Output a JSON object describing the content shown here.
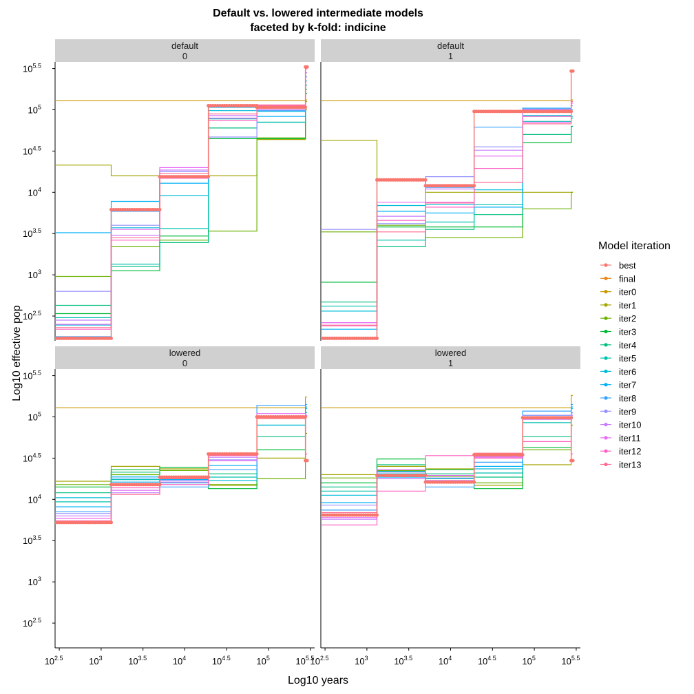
{
  "chart_data": {
    "type": "line",
    "title_line1": "Default vs. lowered intermediate models",
    "title_line2": "faceted by k-fold: indicine",
    "xlabel": "Log10 years",
    "ylabel": "Log10 effective pop",
    "x_scale": "log10",
    "y_scale": "log10",
    "xlim_log10": [
      2.45,
      5.55
    ],
    "ylim_log10": [
      2.2,
      5.58
    ],
    "x_ticks_log10": [
      2.5,
      3,
      3.5,
      4,
      4.5,
      5,
      5.5
    ],
    "y_ticks_log10": [
      2.5,
      3,
      3.5,
      4,
      4.5,
      5,
      5.5
    ],
    "tick_labels": {
      "2.5": "2.5",
      "3": "3",
      "3.5": "3.5",
      "4": "4",
      "4.5": "4.5",
      "5": "5",
      "5.5": "5.5"
    },
    "tick_base": "10",
    "legend_title": "Model iteration",
    "legend_position": "right",
    "grid": false,
    "series_colors": {
      "best": "#F8766D",
      "final": "#E7861B",
      "iter0": "#C99800",
      "iter1": "#A3A500",
      "iter2": "#6BB100",
      "iter3": "#00BA38",
      "iter4": "#00BF7D",
      "iter5": "#00C0AF",
      "iter6": "#00BCD8",
      "iter7": "#00B0F6",
      "iter8": "#35A2FF",
      "iter9": "#9590FF",
      "iter10": "#C77CFF",
      "iter11": "#E76BF3",
      "iter12": "#FF61C3",
      "iter13": "#FF6C91"
    },
    "series_names": [
      "best",
      "final",
      "iter0",
      "iter1",
      "iter2",
      "iter3",
      "iter4",
      "iter5",
      "iter6",
      "iter7",
      "iter8",
      "iter9",
      "iter10",
      "iter11",
      "iter12",
      "iter13"
    ],
    "facets": [
      {
        "strip": [
          "default",
          "0"
        ],
        "breaks_log10": [
          2.45,
          3.12,
          3.7,
          4.28,
          4.86,
          5.44,
          5.46
        ],
        "series": [
          {
            "name": "iter0",
            "values": [
              5.11,
              5.11,
              5.11,
              5.11,
              5.11,
              5.12
            ]
          },
          {
            "name": "iter1",
            "values": [
              4.33,
              4.2,
              4.2,
              4.2,
              4.64,
              5.0
            ]
          },
          {
            "name": "iter2",
            "values": [
              2.98,
              3.34,
              3.42,
              3.53,
              4.66,
              5.1
            ]
          },
          {
            "name": "iter3",
            "values": [
              2.53,
              3.05,
              3.47,
              4.65,
              4.65,
              5.2
            ]
          },
          {
            "name": "iter4",
            "values": [
              2.63,
              3.1,
              3.39,
              4.78,
              4.85,
              5.25
            ]
          },
          {
            "name": "iter5",
            "values": [
              2.48,
              3.13,
              3.56,
              4.89,
              4.85,
              5.3
            ]
          },
          {
            "name": "iter6",
            "values": [
              2.39,
              3.57,
              3.96,
              4.99,
              4.98,
              5.3
            ]
          },
          {
            "name": "iter7",
            "values": [
              3.51,
              3.89,
              4.11,
              5.03,
              4.92,
              5.35
            ]
          },
          {
            "name": "iter8",
            "values": [
              2.25,
              3.77,
              4.2,
              5.05,
              4.99,
              5.4
            ]
          },
          {
            "name": "iter9",
            "values": [
              2.8,
              3.6,
              4.25,
              4.67,
              5.05,
              5.45
            ]
          },
          {
            "name": "iter10",
            "values": [
              2.45,
              3.48,
              4.27,
              4.93,
              5.0,
              5.45
            ]
          },
          {
            "name": "iter11",
            "values": [
              2.4,
              3.55,
              4.3,
              4.9,
              5.02,
              5.5
            ]
          },
          {
            "name": "iter12",
            "values": [
              2.34,
              3.42,
              4.17,
              4.87,
              5.05,
              5.5
            ]
          },
          {
            "name": "iter13",
            "values": [
              2.36,
              3.45,
              4.23,
              4.95,
              5.06,
              5.5
            ]
          },
          {
            "name": "best",
            "values": [
              2.23,
              3.79,
              4.19,
              5.05,
              5.03,
              5.52
            ],
            "points": true
          }
        ]
      },
      {
        "strip": [
          "default",
          "1"
        ],
        "breaks_log10": [
          2.45,
          3.12,
          3.7,
          4.28,
          4.86,
          5.44,
          5.46
        ],
        "series": [
          {
            "name": "iter0",
            "values": [
              5.11,
              5.11,
              5.11,
              5.11,
              5.11,
              5.12
            ]
          },
          {
            "name": "iter1",
            "values": [
              4.63,
              4.16,
              4.0,
              4.0,
              4.0,
              4.0
            ]
          },
          {
            "name": "iter2",
            "values": [
              3.52,
              3.6,
              3.45,
              3.45,
              3.8,
              4.0
            ]
          },
          {
            "name": "iter3",
            "values": [
              2.91,
              3.58,
              3.58,
              3.58,
              4.6,
              4.8
            ]
          },
          {
            "name": "iter4",
            "values": [
              2.67,
              3.34,
              3.55,
              3.73,
              4.7,
              4.8
            ]
          },
          {
            "name": "iter5",
            "values": [
              2.62,
              3.42,
              3.64,
              3.85,
              4.86,
              4.9
            ]
          },
          {
            "name": "iter6",
            "values": [
              2.56,
              3.84,
              3.85,
              4.03,
              4.93,
              4.92
            ]
          },
          {
            "name": "iter7",
            "values": [
              2.34,
              3.77,
              3.75,
              3.82,
              5.02,
              4.98
            ]
          },
          {
            "name": "iter8",
            "values": [
              2.24,
              4.15,
              4.06,
              4.79,
              4.98,
              5.0
            ]
          },
          {
            "name": "iter9",
            "values": [
              3.55,
              3.62,
              4.19,
              4.55,
              5.0,
              5.05
            ]
          },
          {
            "name": "iter10",
            "values": [
              2.42,
              3.71,
              4.04,
              4.51,
              5.01,
              5.08
            ]
          },
          {
            "name": "iter11",
            "values": [
              2.42,
              3.88,
              3.88,
              4.44,
              4.85,
              5.08
            ]
          },
          {
            "name": "iter12",
            "values": [
              2.38,
              3.66,
              3.82,
              4.29,
              4.92,
              5.1
            ]
          },
          {
            "name": "iter13",
            "values": [
              2.39,
              3.52,
              3.87,
              4.12,
              4.83,
              5.1
            ]
          },
          {
            "name": "best",
            "values": [
              2.23,
              4.15,
              4.08,
              4.98,
              4.98,
              5.47
            ],
            "points": true
          }
        ]
      },
      {
        "strip": [
          "lowered",
          "0"
        ],
        "breaks_log10": [
          2.45,
          3.12,
          3.7,
          4.28,
          4.86,
          5.44,
          5.46
        ],
        "series": [
          {
            "name": "iter0",
            "values": [
              5.11,
              5.11,
              5.11,
              5.11,
              5.11,
              5.24
            ]
          },
          {
            "name": "iter1",
            "values": [
              4.22,
              4.4,
              4.37,
              4.17,
              4.5,
              5.0
            ]
          },
          {
            "name": "iter2",
            "values": [
              4.18,
              4.3,
              4.35,
              4.18,
              4.25,
              4.8
            ]
          },
          {
            "name": "iter3",
            "values": [
              4.15,
              4.36,
              4.39,
              4.13,
              4.6,
              5.0
            ]
          },
          {
            "name": "iter4",
            "values": [
              4.08,
              4.33,
              4.28,
              4.31,
              4.76,
              5.0
            ]
          },
          {
            "name": "iter5",
            "values": [
              3.97,
              4.24,
              4.24,
              4.27,
              4.9,
              5.05
            ]
          },
          {
            "name": "iter6",
            "values": [
              4.02,
              4.28,
              4.2,
              4.23,
              4.9,
              5.1
            ]
          },
          {
            "name": "iter7",
            "values": [
              3.91,
              4.21,
              4.24,
              4.41,
              5.01,
              5.12
            ]
          },
          {
            "name": "iter8",
            "values": [
              3.85,
              4.26,
              4.15,
              4.36,
              5.14,
              5.15
            ]
          },
          {
            "name": "iter9",
            "values": [
              3.83,
              4.17,
              4.23,
              4.48,
              4.99,
              5.02
            ]
          },
          {
            "name": "iter10",
            "values": [
              3.8,
              4.08,
              4.18,
              4.51,
              5.0,
              5.0
            ]
          },
          {
            "name": "iter11",
            "values": [
              3.77,
              4.11,
              4.21,
              4.47,
              5.04,
              5.02
            ]
          },
          {
            "name": "iter12",
            "values": [
              3.74,
              4.14,
              4.18,
              4.53,
              5.0,
              4.55
            ]
          },
          {
            "name": "iter13",
            "values": [
              3.72,
              4.06,
              4.25,
              4.56,
              4.98,
              4.48
            ]
          },
          {
            "name": "best",
            "values": [
              3.72,
              4.18,
              4.27,
              4.55,
              5.0,
              4.47
            ],
            "points": true
          }
        ]
      },
      {
        "strip": [
          "lowered",
          "1"
        ],
        "breaks_log10": [
          2.45,
          3.12,
          3.7,
          4.28,
          4.86,
          5.44,
          5.46
        ],
        "series": [
          {
            "name": "iter0",
            "values": [
              5.11,
              5.11,
              5.11,
              5.11,
              5.11,
              5.26
            ]
          },
          {
            "name": "iter1",
            "values": [
              4.3,
              4.4,
              4.37,
              4.17,
              4.42,
              5.0
            ]
          },
          {
            "name": "iter2",
            "values": [
              4.26,
              4.35,
              4.28,
              4.2,
              4.6,
              4.9
            ]
          },
          {
            "name": "iter3",
            "values": [
              4.2,
              4.49,
              4.36,
              4.13,
              4.63,
              4.98
            ]
          },
          {
            "name": "iter4",
            "values": [
              4.15,
              4.42,
              4.31,
              4.27,
              4.76,
              5.05
            ]
          },
          {
            "name": "iter5",
            "values": [
              4.1,
              4.34,
              4.25,
              4.32,
              4.93,
              5.05
            ]
          },
          {
            "name": "iter6",
            "values": [
              4.05,
              4.31,
              4.22,
              4.37,
              5.0,
              5.1
            ]
          },
          {
            "name": "iter7",
            "values": [
              3.96,
              4.27,
              4.2,
              4.4,
              5.02,
              5.12
            ]
          },
          {
            "name": "iter8",
            "values": [
              3.87,
              4.25,
              4.15,
              4.45,
              5.07,
              5.15
            ]
          },
          {
            "name": "iter9",
            "values": [
              3.93,
              4.33,
              4.26,
              4.55,
              5.02,
              5.05
            ]
          },
          {
            "name": "iter10",
            "values": [
              3.76,
              4.25,
              4.23,
              4.52,
              4.97,
              5.02
            ]
          },
          {
            "name": "iter11",
            "values": [
              3.78,
              4.36,
              4.29,
              4.51,
              4.98,
              5.0
            ]
          },
          {
            "name": "iter12",
            "values": [
              3.69,
              4.1,
              4.53,
              4.5,
              4.7,
              4.55
            ]
          },
          {
            "name": "iter13",
            "values": [
              3.84,
              4.3,
              4.21,
              4.56,
              4.98,
              4.48
            ]
          },
          {
            "name": "best",
            "values": [
              3.81,
              4.29,
              4.21,
              4.54,
              4.99,
              4.47
            ],
            "points": true
          }
        ]
      }
    ]
  }
}
